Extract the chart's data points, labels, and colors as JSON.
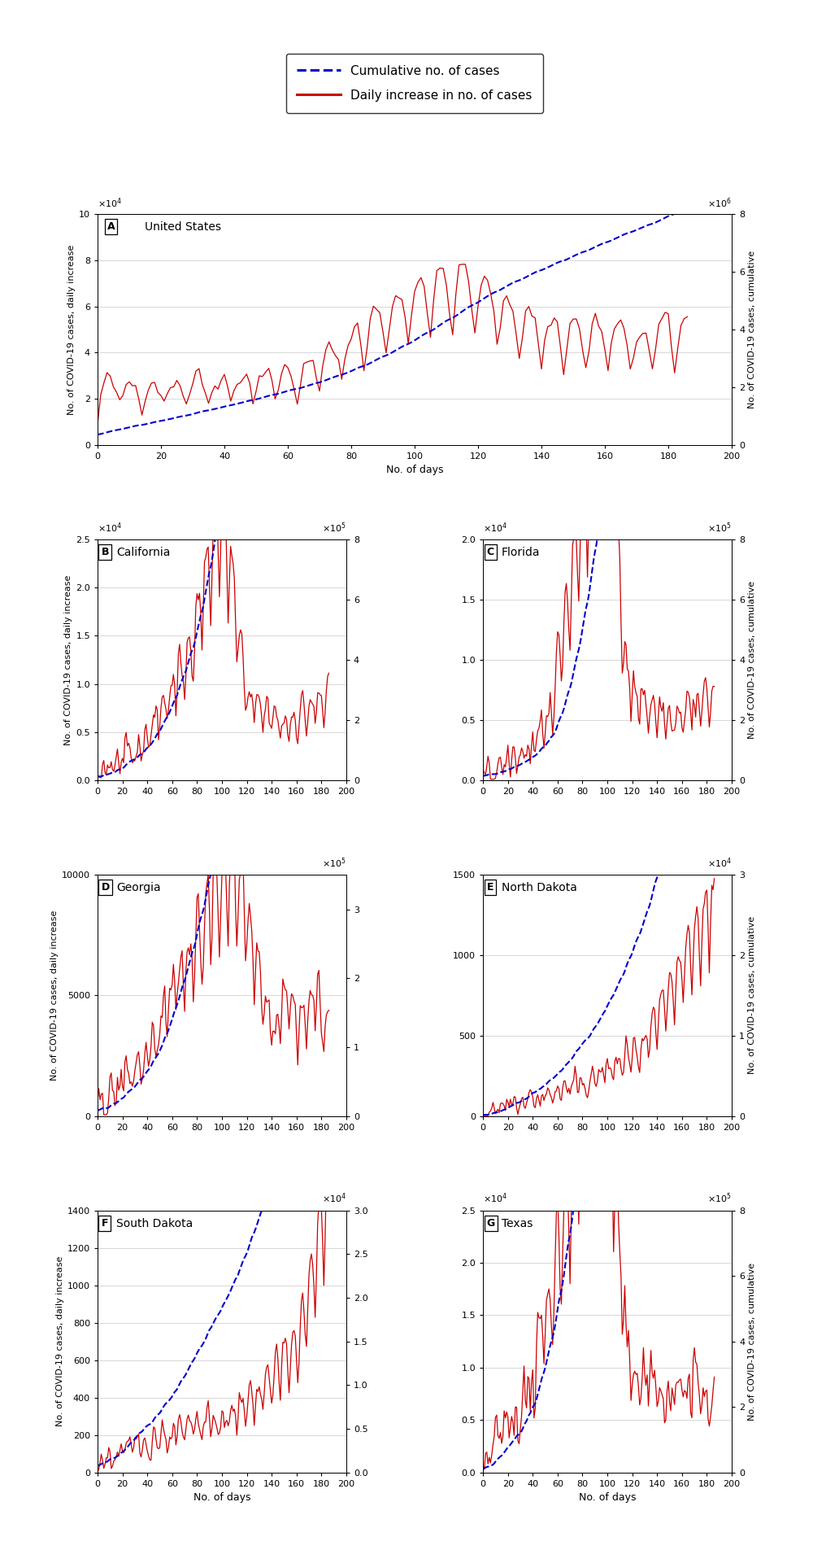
{
  "line_color_daily": "#cc0000",
  "line_color_cumul": "#0000cc",
  "legend_label_cumul": "Cumulative no. of cases",
  "legend_label_daily": "Daily increase in no. of cases",
  "xlabel": "No. of days",
  "ylabel_left": "No. of COVID-19 cases, daily increase",
  "ylabel_right": "No. of COVID-19 cases, cumulative",
  "xticks": [
    0,
    20,
    40,
    60,
    80,
    100,
    120,
    140,
    160,
    180,
    200
  ],
  "xlim": [
    0,
    200
  ],
  "n_days": 187,
  "panels": [
    {
      "label": "A",
      "title": "United States",
      "daily_divisor": 10000,
      "cumul_divisor": 1000000,
      "daily_ylim": [
        0,
        10
      ],
      "cumul_ylim": [
        0,
        8
      ],
      "daily_yticks": [
        0,
        2,
        4,
        6,
        8,
        10
      ],
      "cumul_yticks": [
        0,
        2,
        4,
        6,
        8
      ],
      "left_exp": "x10^4",
      "right_exp": "x10^6",
      "show_xlabel": true,
      "show_ylabel_left": true,
      "show_ylabel_right": true
    },
    {
      "label": "B",
      "title": "California",
      "daily_divisor": 10000,
      "cumul_divisor": 100000,
      "daily_ylim": [
        0,
        2.5
      ],
      "cumul_ylim": [
        0,
        8
      ],
      "daily_yticks": [
        0,
        0.5,
        1.0,
        1.5,
        2.0,
        2.5
      ],
      "cumul_yticks": [
        0,
        2,
        4,
        6,
        8
      ],
      "left_exp": "x10^4",
      "right_exp": "x10^5",
      "show_xlabel": false,
      "show_ylabel_left": true,
      "show_ylabel_right": false
    },
    {
      "label": "C",
      "title": "Florida",
      "daily_divisor": 10000,
      "cumul_divisor": 100000,
      "daily_ylim": [
        0,
        2.0
      ],
      "cumul_ylim": [
        0,
        8
      ],
      "daily_yticks": [
        0,
        0.5,
        1.0,
        1.5,
        2.0
      ],
      "cumul_yticks": [
        0,
        2,
        4,
        6,
        8
      ],
      "left_exp": "x10^4",
      "right_exp": "x10^5",
      "show_xlabel": false,
      "show_ylabel_left": false,
      "show_ylabel_right": true
    },
    {
      "label": "D",
      "title": "Georgia",
      "daily_divisor": 1,
      "cumul_divisor": 100000,
      "daily_ylim": [
        0,
        10000
      ],
      "cumul_ylim": [
        0,
        3.5
      ],
      "daily_yticks": [
        0,
        5000,
        10000
      ],
      "cumul_yticks": [
        0,
        1,
        2,
        3
      ],
      "left_exp": null,
      "right_exp": "x10^5",
      "show_xlabel": false,
      "show_ylabel_left": true,
      "show_ylabel_right": false
    },
    {
      "label": "E",
      "title": "North Dakota",
      "daily_divisor": 1,
      "cumul_divisor": 10000,
      "daily_ylim": [
        0,
        1500
      ],
      "cumul_ylim": [
        0,
        3
      ],
      "daily_yticks": [
        0,
        500,
        1000,
        1500
      ],
      "cumul_yticks": [
        0,
        1,
        2,
        3
      ],
      "left_exp": null,
      "right_exp": "x10^4",
      "show_xlabel": false,
      "show_ylabel_left": false,
      "show_ylabel_right": true
    },
    {
      "label": "F",
      "title": "South Dakota",
      "daily_divisor": 1,
      "cumul_divisor": 10000,
      "daily_ylim": [
        0,
        1400
      ],
      "cumul_ylim": [
        0,
        3.0
      ],
      "daily_yticks": [
        0,
        200,
        400,
        600,
        800,
        1000,
        1200,
        1400
      ],
      "cumul_yticks": [
        0,
        0.5,
        1.0,
        1.5,
        2.0,
        2.5,
        3.0
      ],
      "left_exp": null,
      "right_exp": "x10^4",
      "show_xlabel": true,
      "show_ylabel_left": true,
      "show_ylabel_right": false
    },
    {
      "label": "G",
      "title": "Texas",
      "daily_divisor": 10000,
      "cumul_divisor": 100000,
      "daily_ylim": [
        0,
        2.5
      ],
      "cumul_ylim": [
        0,
        8
      ],
      "daily_yticks": [
        0,
        0.5,
        1.0,
        1.5,
        2.0,
        2.5
      ],
      "cumul_yticks": [
        0,
        2,
        4,
        6,
        8
      ],
      "left_exp": "x10^4",
      "right_exp": "x10^5",
      "show_xlabel": true,
      "show_ylabel_left": false,
      "show_ylabel_right": true
    }
  ]
}
